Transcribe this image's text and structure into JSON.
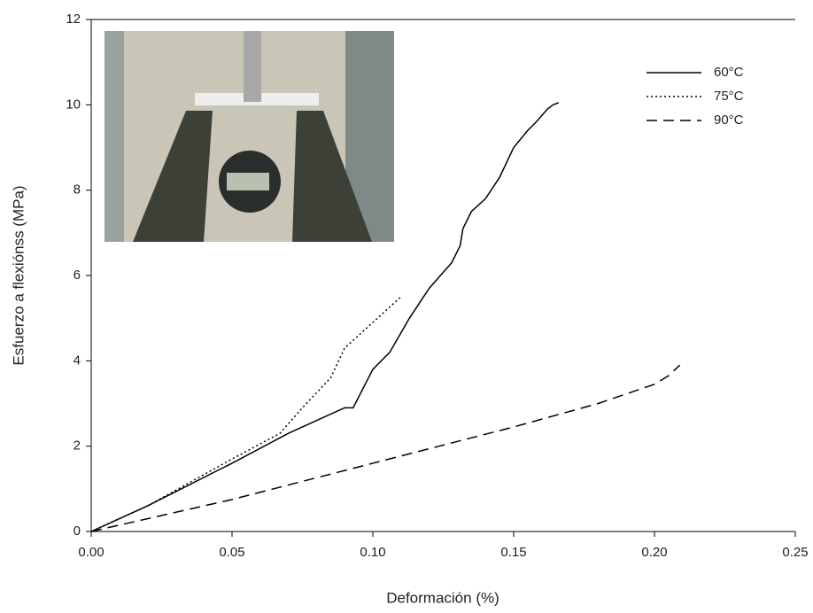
{
  "chart_data": {
    "type": "line",
    "xlabel": "Deformación (%)",
    "ylabel": "Esfuerzo a flexiónss (MPa)",
    "xlim": [
      0,
      0.25
    ],
    "ylim": [
      0,
      12
    ],
    "xticks": [
      {
        "value": 0,
        "label": "0.00"
      },
      {
        "value": 0.05,
        "label": "0.05"
      },
      {
        "value": 0.1,
        "label": "0.10"
      },
      {
        "value": 0.15,
        "label": "0.15"
      },
      {
        "value": 0.2,
        "label": "0.20"
      },
      {
        "value": 0.25,
        "label": "0.25"
      }
    ],
    "yticks": [
      0,
      2,
      4,
      6,
      8,
      10,
      12
    ],
    "legend": "upper right",
    "series": [
      {
        "name": "60°C",
        "color": "#000000",
        "linestyle": "solid",
        "x": [
          0,
          0.02,
          0.05,
          0.07,
          0.09,
          0.093,
          0.1,
          0.106,
          0.113,
          0.12,
          0.128,
          0.131,
          0.132,
          0.135,
          0.14,
          0.145,
          0.15,
          0.155,
          0.158,
          0.162,
          0.164,
          0.166
        ],
        "values": [
          0,
          0.6,
          1.6,
          2.3,
          2.9,
          2.9,
          3.8,
          4.2,
          5.0,
          5.7,
          6.3,
          6.7,
          7.1,
          7.5,
          7.8,
          8.3,
          9.0,
          9.4,
          9.6,
          9.9,
          10.0,
          10.05
        ]
      },
      {
        "name": "75°C",
        "color": "#000000",
        "linestyle": "dotted",
        "x": [
          0,
          0.02,
          0.05,
          0.067,
          0.075,
          0.085,
          0.09,
          0.095,
          0.1,
          0.105,
          0.11
        ],
        "values": [
          0,
          0.6,
          1.7,
          2.3,
          2.9,
          3.6,
          4.3,
          4.6,
          4.9,
          5.2,
          5.5
        ]
      },
      {
        "name": "90°C",
        "color": "#000000",
        "linestyle": "dashed",
        "x": [
          0,
          0.05,
          0.1,
          0.15,
          0.18,
          0.2,
          0.205,
          0.209
        ],
        "values": [
          0,
          0.75,
          1.6,
          2.45,
          3.0,
          3.45,
          3.65,
          3.9
        ]
      }
    ]
  }
}
